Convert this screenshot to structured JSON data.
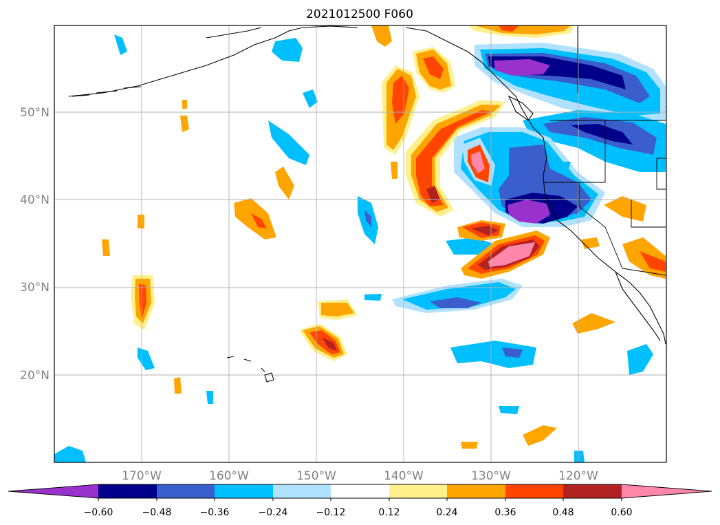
{
  "title": "2021012500 F060",
  "map": {
    "lat_labels": [
      "50°N",
      "40°N",
      "30°N",
      "20°N"
    ],
    "lon_labels": [
      "170°W",
      "160°W",
      "150°W",
      "140°W",
      "130°W",
      "120°W"
    ]
  },
  "colorbar": {
    "extend": "both",
    "levels": [
      "−0.60",
      "−0.48",
      "−0.36",
      "−0.24",
      "−0.12",
      "0.12",
      "0.24",
      "0.36",
      "0.48",
      "0.60"
    ],
    "colors": [
      "#9932cc",
      "#00008b",
      "#3a5fcd",
      "#00bfff",
      "#b0e2ff",
      "#ffffff",
      "#fff08c",
      "#ffa500",
      "#ff4500",
      "#b22222",
      "#ff88aa"
    ]
  }
}
